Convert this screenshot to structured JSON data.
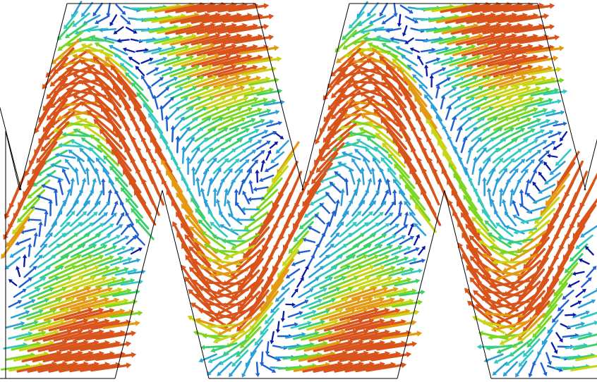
{
  "figure": {
    "kind": "vector-field",
    "description_shown_text": "",
    "channel_outline_color": "#000000",
    "background_color": "#ffffff",
    "colormap": [
      "#0a1aa8",
      "#1f5fd0",
      "#2a9fd8",
      "#33c9c0",
      "#3ccf6a",
      "#7ad61e",
      "#c8d414",
      "#e39a12",
      "#d8541a"
    ],
    "period_count": 2,
    "arrow_glyph": "cone-tipped-shaft"
  }
}
